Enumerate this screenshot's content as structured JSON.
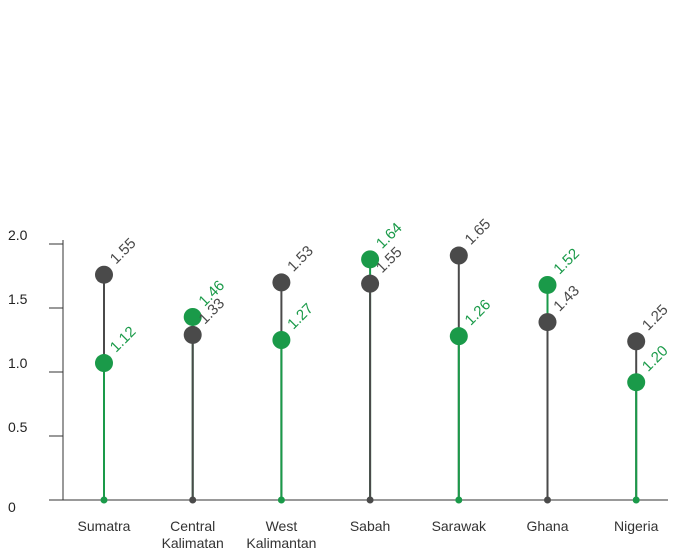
{
  "chart_data": {
    "type": "lollipop",
    "title": "",
    "xlabel": "",
    "ylabel": "",
    "ylim": [
      0,
      2.0
    ],
    "yticks": [
      "0",
      "0.5",
      "1.0",
      "1.5",
      "2.0"
    ],
    "ytick_values": [
      0,
      0.5,
      1.0,
      1.5,
      2.0
    ],
    "grid": false,
    "legend": "none",
    "categories": [
      [
        "Sumatra"
      ],
      [
        "Central",
        "Kalimatan"
      ],
      [
        "West",
        "Kalimantan"
      ],
      [
        "Sabah"
      ],
      [
        "Sarawak"
      ],
      [
        "Ghana"
      ],
      [
        "Nigeria"
      ]
    ],
    "series": [
      {
        "color": "#4a4a4a",
        "values": [
          1.55,
          1.33,
          1.53,
          1.55,
          1.65,
          1.43,
          1.25
        ],
        "markers": [
          1.76,
          1.29,
          1.7,
          1.69,
          1.91,
          1.39,
          1.24
        ],
        "labels": [
          "1.55",
          "1.33",
          "1.53",
          "1.55",
          "1.65",
          "1.43",
          "1.25"
        ]
      },
      {
        "color": "#1a9a49",
        "values": [
          1.12,
          1.46,
          1.27,
          1.64,
          1.26,
          1.52,
          1.2
        ],
        "markers": [
          1.07,
          1.43,
          1.25,
          1.88,
          1.28,
          1.68,
          0.92
        ],
        "labels": [
          "1.12",
          "1.46",
          "1.27",
          "1.64",
          "1.26",
          "1.52",
          "1.20"
        ]
      }
    ]
  }
}
